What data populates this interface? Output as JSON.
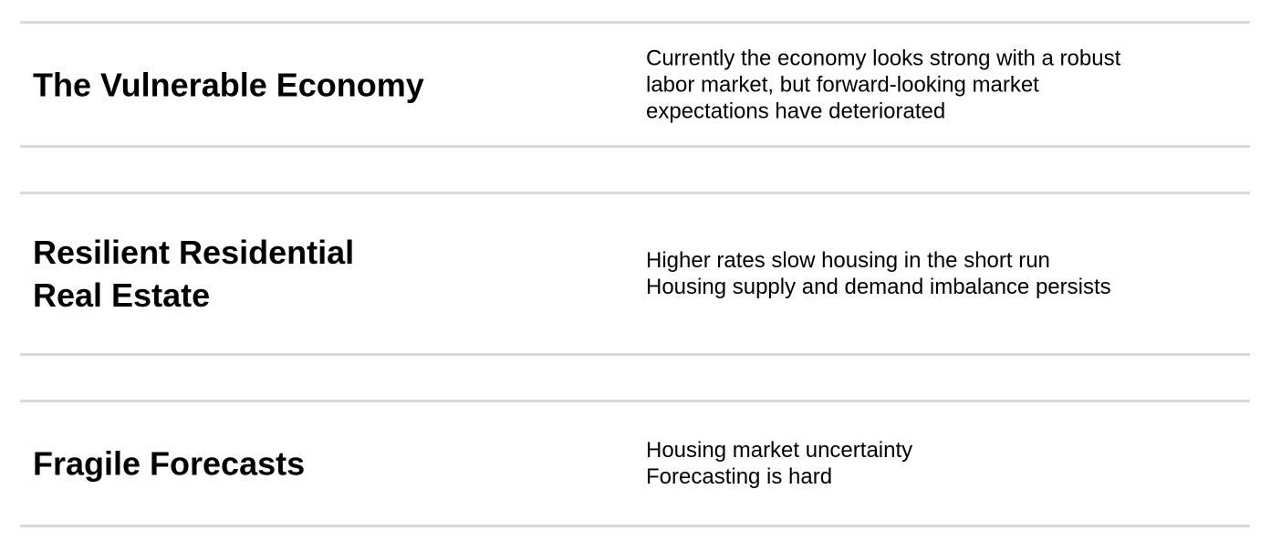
{
  "sections": [
    {
      "title_lines": [
        "The Vulnerable Economy"
      ],
      "description_lines": [
        "Currently the economy looks strong with a robust",
        "labor market, but forward-looking market",
        "expectations have deteriorated"
      ]
    },
    {
      "title_lines": [
        "Resilient Residential",
        "Real Estate"
      ],
      "description_lines": [
        "Higher rates slow housing in the short run",
        "Housing supply and demand imbalance persists"
      ]
    },
    {
      "title_lines": [
        "Fragile Forecasts"
      ],
      "description_lines": [
        "Housing market uncertainty",
        "Forecasting is hard"
      ]
    }
  ],
  "divider_color": "#d9d9d9"
}
